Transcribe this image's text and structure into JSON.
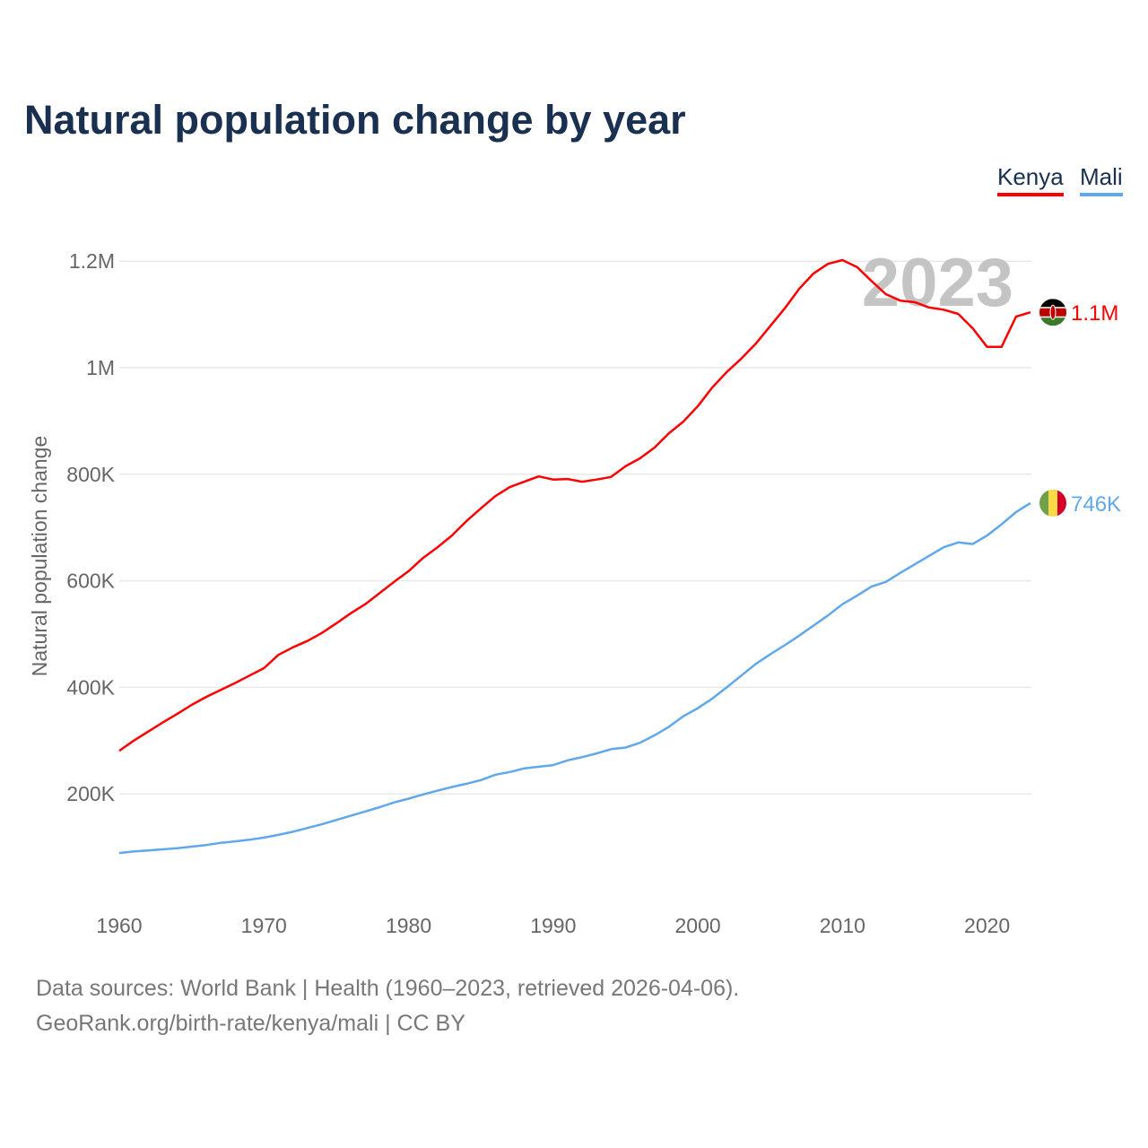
{
  "chart_data": {
    "type": "line",
    "title": "Natural population change by year",
    "ylabel": "Natural population change",
    "xlabel": "",
    "xlim": [
      1960,
      2023
    ],
    "ylim": [
      0,
      1300000
    ],
    "grid": true,
    "legend_position": "top-right",
    "x_ticks": [
      1960,
      1970,
      1980,
      1990,
      2000,
      2010,
      2020
    ],
    "x_tick_labels": [
      "1960",
      "1970",
      "1980",
      "1990",
      "2000",
      "2010",
      "2020"
    ],
    "y_ticks": [
      200000,
      400000,
      600000,
      800000,
      1000000,
      1200000
    ],
    "y_tick_labels": [
      "200K",
      "400K",
      "600K",
      "800K",
      "1M",
      "1.2M"
    ],
    "year_watermark": "2023",
    "x": [
      1960,
      1961,
      1962,
      1963,
      1964,
      1965,
      1966,
      1967,
      1968,
      1969,
      1970,
      1971,
      1972,
      1973,
      1974,
      1975,
      1976,
      1977,
      1978,
      1979,
      1980,
      1981,
      1982,
      1983,
      1984,
      1985,
      1986,
      1987,
      1988,
      1989,
      1990,
      1991,
      1992,
      1993,
      1994,
      1995,
      1996,
      1997,
      1998,
      1999,
      2000,
      2001,
      2002,
      2003,
      2004,
      2005,
      2006,
      2007,
      2008,
      2009,
      2010,
      2011,
      2012,
      2013,
      2014,
      2015,
      2016,
      2017,
      2018,
      2019,
      2020,
      2021,
      2022,
      2023
    ],
    "series": [
      {
        "name": "Kenya",
        "color": "#ff0000",
        "end_label": "1.1M",
        "flag": "kenya-flag",
        "values": [
          281000,
          300000,
          317000,
          334000,
          350000,
          367000,
          382000,
          395000,
          408000,
          422000,
          436000,
          461000,
          475000,
          487000,
          502000,
          520000,
          539000,
          556000,
          577000,
          598000,
          618000,
          643000,
          663000,
          685000,
          712000,
          736000,
          759000,
          776000,
          786000,
          796000,
          790000,
          791000,
          786000,
          790000,
          795000,
          815000,
          830000,
          850000,
          877000,
          899000,
          928000,
          963000,
          992000,
          1017000,
          1045000,
          1078000,
          1111000,
          1148000,
          1177000,
          1195000,
          1202000,
          1189000,
          1163000,
          1138000,
          1126000,
          1123000,
          1113000,
          1109000,
          1101000,
          1074000,
          1039000,
          1039000,
          1096000,
          1104000
        ]
      },
      {
        "name": "Mali",
        "color": "#5fa8ec",
        "end_label": "746K",
        "flag": "mali-flag",
        "values": [
          89000,
          92000,
          94000,
          96000,
          98000,
          101000,
          104000,
          108000,
          111000,
          114000,
          118000,
          123000,
          129000,
          136000,
          143000,
          151000,
          159000,
          167000,
          175000,
          184000,
          191000,
          199000,
          206000,
          213000,
          219000,
          226000,
          236000,
          241000,
          248000,
          251000,
          254000,
          263000,
          269000,
          276000,
          284000,
          287000,
          296000,
          310000,
          326000,
          346000,
          361000,
          379000,
          400000,
          422000,
          444000,
          462000,
          479000,
          497000,
          516000,
          535000,
          556000,
          572000,
          589000,
          598000,
          615000,
          631000,
          647000,
          663000,
          672000,
          669000,
          685000,
          706000,
          729000,
          746000
        ]
      }
    ]
  },
  "legend": {
    "kenya": "Kenya",
    "mali": "Mali"
  },
  "footer": {
    "line1": "Data sources: World Bank | Health (1960–2023, retrieved 2026-04-06).",
    "line2": "GeoRank.org/birth-rate/kenya/mali | CC BY"
  }
}
